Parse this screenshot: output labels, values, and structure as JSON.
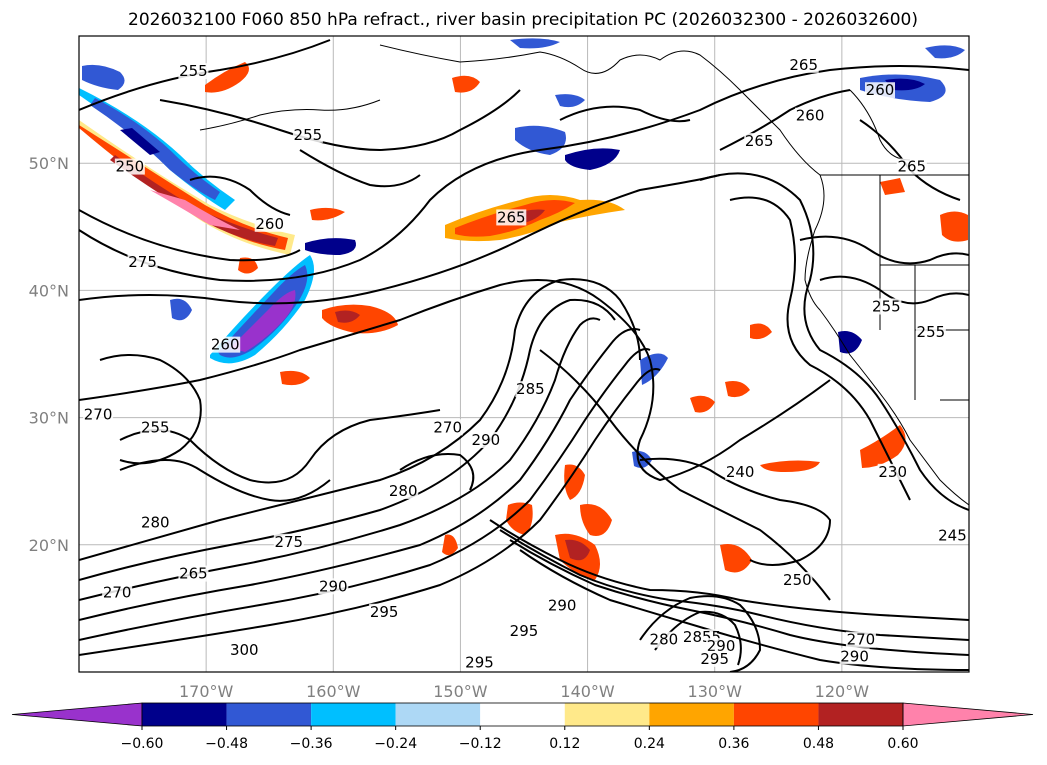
{
  "title": "2026032100 F060 850 hPa refract., river basin precipitation PC (2026032300 - 2026032600)",
  "map": {
    "lon_range": [
      -180,
      -110
    ],
    "lat_range": [
      10,
      60
    ],
    "lat_ticks": [
      {
        "value": 20,
        "label": "20°N"
      },
      {
        "value": 30,
        "label": "30°N"
      },
      {
        "value": 40,
        "label": "40°N"
      },
      {
        "value": 50,
        "label": "50°N"
      }
    ],
    "lon_ticks": [
      {
        "value": -170,
        "label": "170°W"
      },
      {
        "value": -160,
        "label": "160°W"
      },
      {
        "value": -150,
        "label": "150°W"
      },
      {
        "value": -140,
        "label": "140°W"
      },
      {
        "value": -130,
        "label": "130°W"
      },
      {
        "value": -120,
        "label": "120°W"
      }
    ],
    "gridlines": true,
    "contour_labels": [
      {
        "text": "255",
        "lon": -171,
        "lat": 57
      },
      {
        "text": "255",
        "lon": -162,
        "lat": 52
      },
      {
        "text": "250",
        "lon": -176,
        "lat": 49.5
      },
      {
        "text": "260",
        "lon": -165,
        "lat": 45
      },
      {
        "text": "275",
        "lon": -175,
        "lat": 42
      },
      {
        "text": "265",
        "lon": -146,
        "lat": 45.5
      },
      {
        "text": "265",
        "lon": -123,
        "lat": 57.5
      },
      {
        "text": "260",
        "lon": -117,
        "lat": 55.5
      },
      {
        "text": "260",
        "lon": -122.5,
        "lat": 53.5
      },
      {
        "text": "265",
        "lon": -126.5,
        "lat": 51.5
      },
      {
        "text": "265",
        "lon": -114.5,
        "lat": 49.5
      },
      {
        "text": "255",
        "lon": -116.5,
        "lat": 38.5
      },
      {
        "text": "255",
        "lon": -113,
        "lat": 36.5
      },
      {
        "text": "260",
        "lon": -168.5,
        "lat": 35.5
      },
      {
        "text": "255",
        "lon": -174,
        "lat": 29
      },
      {
        "text": "270",
        "lon": -178.5,
        "lat": 30
      },
      {
        "text": "270",
        "lon": -151,
        "lat": 29
      },
      {
        "text": "290",
        "lon": -148,
        "lat": 28
      },
      {
        "text": "285",
        "lon": -144.5,
        "lat": 32
      },
      {
        "text": "240",
        "lon": -128,
        "lat": 25.5
      },
      {
        "text": "230",
        "lon": -116,
        "lat": 25.5
      },
      {
        "text": "280",
        "lon": -154.5,
        "lat": 24
      },
      {
        "text": "280",
        "lon": -174,
        "lat": 21.5
      },
      {
        "text": "275",
        "lon": -163.5,
        "lat": 20
      },
      {
        "text": "265",
        "lon": -171,
        "lat": 17.5
      },
      {
        "text": "270",
        "lon": -177,
        "lat": 16
      },
      {
        "text": "290",
        "lon": -160,
        "lat": 16.5
      },
      {
        "text": "295",
        "lon": -156,
        "lat": 14.5
      },
      {
        "text": "290",
        "lon": -142,
        "lat": 15
      },
      {
        "text": "295",
        "lon": -145,
        "lat": 13
      },
      {
        "text": "250",
        "lon": -123.5,
        "lat": 17
      },
      {
        "text": "280",
        "lon": -134,
        "lat": 12.3
      },
      {
        "text": "2855",
        "lon": -131,
        "lat": 12.5
      },
      {
        "text": "290",
        "lon": -129.5,
        "lat": 11.8
      },
      {
        "text": "295",
        "lon": -130,
        "lat": 10.8
      },
      {
        "text": "270",
        "lon": -118.5,
        "lat": 12.3
      },
      {
        "text": "290",
        "lon": -119,
        "lat": 11
      },
      {
        "text": "300",
        "lon": -167,
        "lat": 11.5
      },
      {
        "text": "295",
        "lon": -148.5,
        "lat": 10.5
      },
      {
        "text": "245",
        "lon": -111.3,
        "lat": 20.5
      }
    ]
  },
  "colorbar": {
    "levels": [
      -0.72,
      -0.6,
      -0.48,
      -0.36,
      -0.24,
      -0.12,
      0.12,
      0.24,
      0.36,
      0.48,
      0.6,
      0.72
    ],
    "colors": [
      "#9932cc",
      "#00008b",
      "#3158d4",
      "#00bfff",
      "#add8f5",
      "#ffffff",
      "#ffe98a",
      "#ffa500",
      "#ff4500",
      "#b22222",
      "#ff82ab"
    ],
    "extend_colors": {
      "low": "#9932cc",
      "high": "#ff82ab"
    },
    "tick_labels": [
      "−0.60",
      "−0.48",
      "−0.36",
      "−0.24",
      "−0.12",
      "0.12",
      "0.24",
      "0.36",
      "0.48",
      "0.60"
    ]
  }
}
